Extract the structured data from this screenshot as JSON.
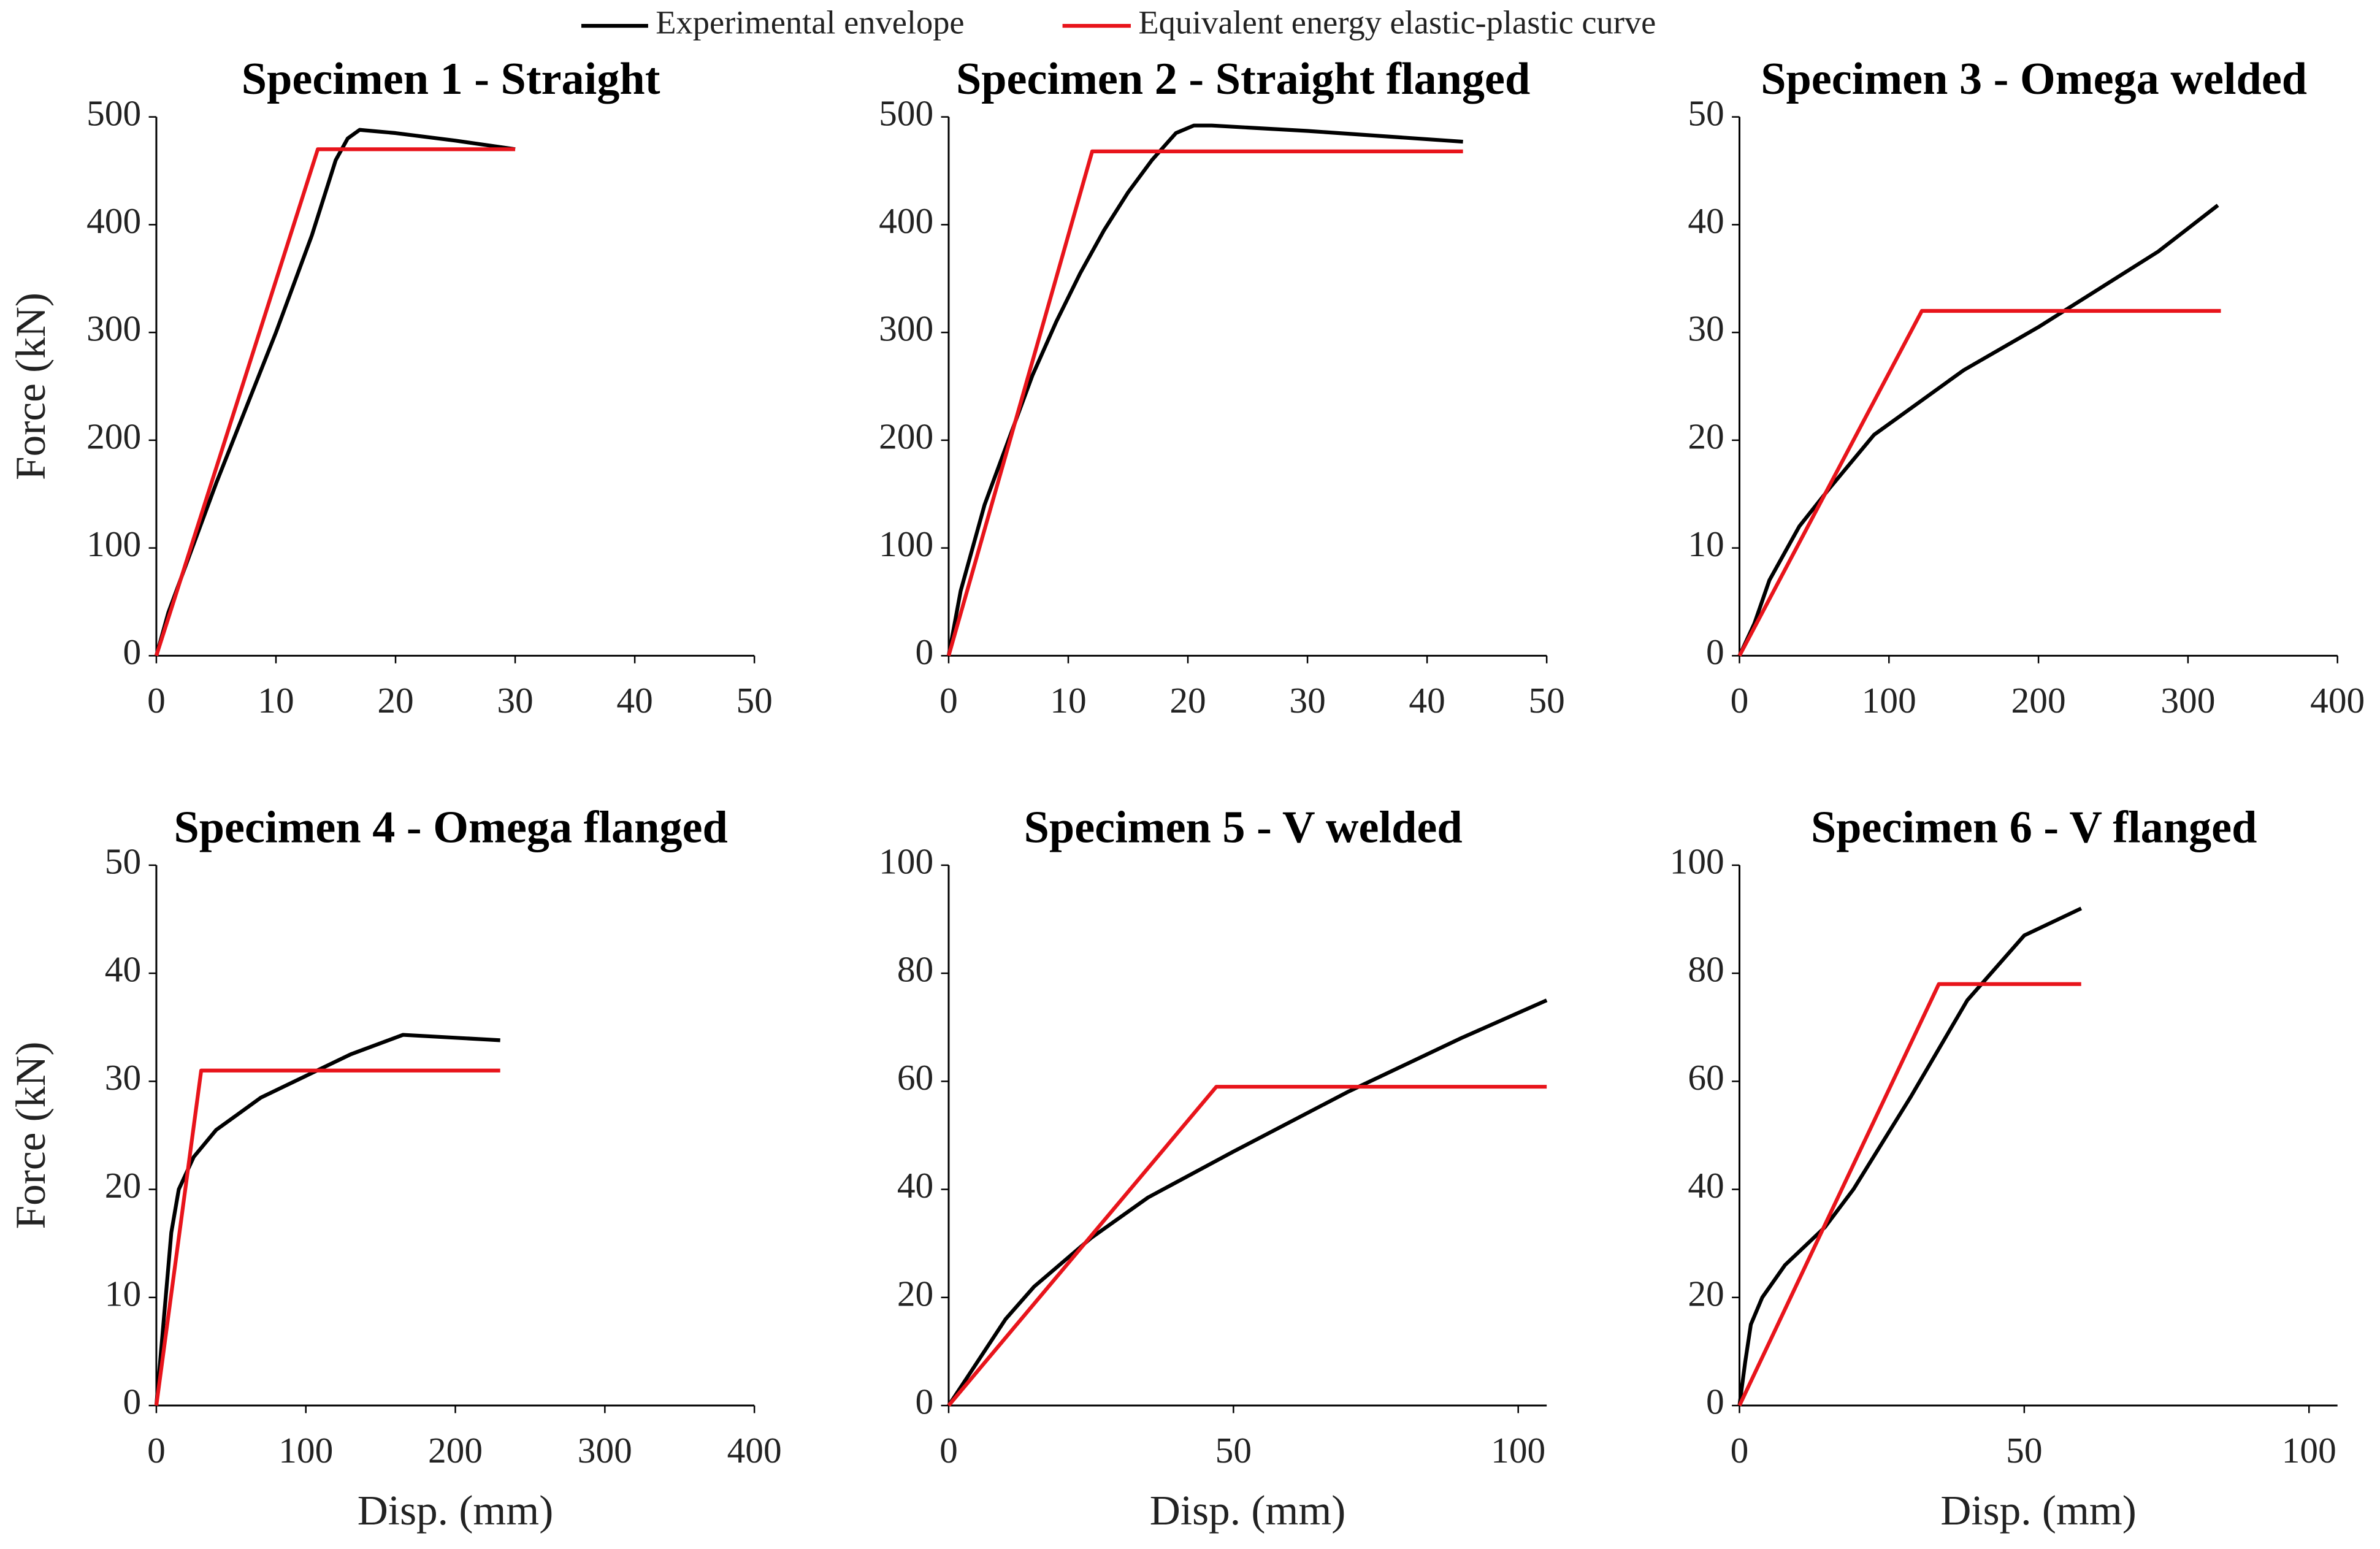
{
  "chart_data": [
    {
      "type": "line",
      "title": "Specimen 1 - Straight",
      "ylabel": "Force (kN)",
      "xlim": [
        0,
        50
      ],
      "xticks": [
        0,
        10,
        20,
        30,
        40,
        50
      ],
      "ylim": [
        0,
        500
      ],
      "yticks": [
        0,
        100,
        200,
        300,
        400,
        500
      ],
      "grid": false,
      "series": [
        {
          "name": "Experimental envelope",
          "color": "#000000",
          "x": [
            0,
            1,
            5,
            10,
            13,
            15,
            16,
            17,
            20,
            25,
            30
          ],
          "values": [
            0,
            40,
            160,
            300,
            390,
            460,
            480,
            488,
            485,
            478,
            470
          ]
        },
        {
          "name": "Equivalent energy elastic-plastic curve",
          "color": "#e8141b",
          "x": [
            0,
            13.5,
            30
          ],
          "values": [
            0,
            470,
            470
          ]
        }
      ]
    },
    {
      "type": "line",
      "title": "Specimen 2 - Straight  flanged",
      "xlim": [
        0,
        50
      ],
      "xticks": [
        0,
        10,
        20,
        30,
        40,
        50
      ],
      "ylim": [
        0,
        500
      ],
      "yticks": [
        0,
        100,
        200,
        300,
        400,
        500
      ],
      "grid": false,
      "series": [
        {
          "color": "#000000",
          "x": [
            0,
            1,
            3,
            5,
            7,
            9,
            11,
            13,
            15,
            17,
            19,
            20.5,
            22,
            30,
            43
          ],
          "values": [
            0,
            60,
            140,
            200,
            260,
            310,
            355,
            395,
            430,
            460,
            485,
            492,
            492,
            487,
            477
          ]
        },
        {
          "color": "#e8141b",
          "x": [
            0,
            12,
            43
          ],
          "values": [
            0,
            468,
            468
          ]
        }
      ]
    },
    {
      "type": "line",
      "title": "Specimen 3 - Omega welded",
      "xlim": [
        0,
        400
      ],
      "xticks": [
        0,
        100,
        200,
        300,
        400
      ],
      "ylim": [
        0,
        50
      ],
      "yticks": [
        0,
        10,
        20,
        30,
        40,
        50
      ],
      "grid": false,
      "series": [
        {
          "color": "#000000",
          "x": [
            0,
            10,
            20,
            40,
            60,
            90,
            120,
            150,
            200,
            240,
            280,
            320
          ],
          "values": [
            0,
            3,
            7,
            12,
            15.5,
            20.5,
            23.5,
            26.5,
            30.5,
            34,
            37.5,
            41.8
          ]
        },
        {
          "color": "#e8141b",
          "x": [
            0,
            122,
            322
          ],
          "values": [
            0,
            32,
            32
          ]
        }
      ]
    },
    {
      "type": "line",
      "title": "Specimen 4 - Omega flanged",
      "ylabel": "Force (kN)",
      "xlabel": "Disp. (mm)",
      "xlim": [
        0,
        400
      ],
      "xticks": [
        0,
        100,
        200,
        300,
        400
      ],
      "ylim": [
        0,
        50
      ],
      "yticks": [
        0,
        10,
        20,
        30,
        40,
        50
      ],
      "grid": false,
      "series": [
        {
          "color": "#000000",
          "x": [
            0,
            5,
            10,
            15,
            25,
            40,
            70,
            100,
            130,
            165,
            230
          ],
          "values": [
            0,
            8,
            16,
            20,
            23,
            25.5,
            28.5,
            30.5,
            32.5,
            34.3,
            33.8
          ]
        },
        {
          "color": "#e8141b",
          "x": [
            0,
            30,
            230
          ],
          "values": [
            0,
            31,
            31
          ]
        }
      ]
    },
    {
      "type": "line",
      "title": "Specimen 5 - V welded",
      "xlabel": "Disp. (mm)",
      "xlim": [
        0,
        105
      ],
      "xticks": [
        0,
        50,
        100
      ],
      "ylim": [
        0,
        100
      ],
      "yticks": [
        0,
        20,
        40,
        60,
        80,
        100
      ],
      "grid": false,
      "series": [
        {
          "color": "#000000",
          "x": [
            0,
            5,
            10,
            15,
            25,
            35,
            50,
            70,
            90,
            105
          ],
          "values": [
            0,
            8,
            16,
            22,
            31,
            38.5,
            47,
            58,
            68,
            75
          ]
        },
        {
          "color": "#e8141b",
          "x": [
            0,
            47,
            105
          ],
          "values": [
            0,
            59,
            59
          ]
        }
      ]
    },
    {
      "type": "line",
      "title": "Specimen 6 - V flanged",
      "xlabel": "Disp. (mm)",
      "xlim": [
        0,
        105
      ],
      "xticks": [
        0,
        50,
        100
      ],
      "ylim": [
        0,
        100
      ],
      "yticks": [
        0,
        20,
        40,
        60,
        80,
        100
      ],
      "grid": false,
      "series": [
        {
          "color": "#000000",
          "x": [
            0,
            1,
            2,
            4,
            8,
            15,
            20,
            30,
            40,
            50,
            60
          ],
          "values": [
            0,
            8,
            15,
            20,
            26,
            33,
            40,
            57,
            75,
            87,
            92
          ]
        },
        {
          "color": "#e8141b",
          "x": [
            0,
            35,
            60
          ],
          "values": [
            0,
            78,
            78
          ]
        }
      ]
    }
  ]
}
